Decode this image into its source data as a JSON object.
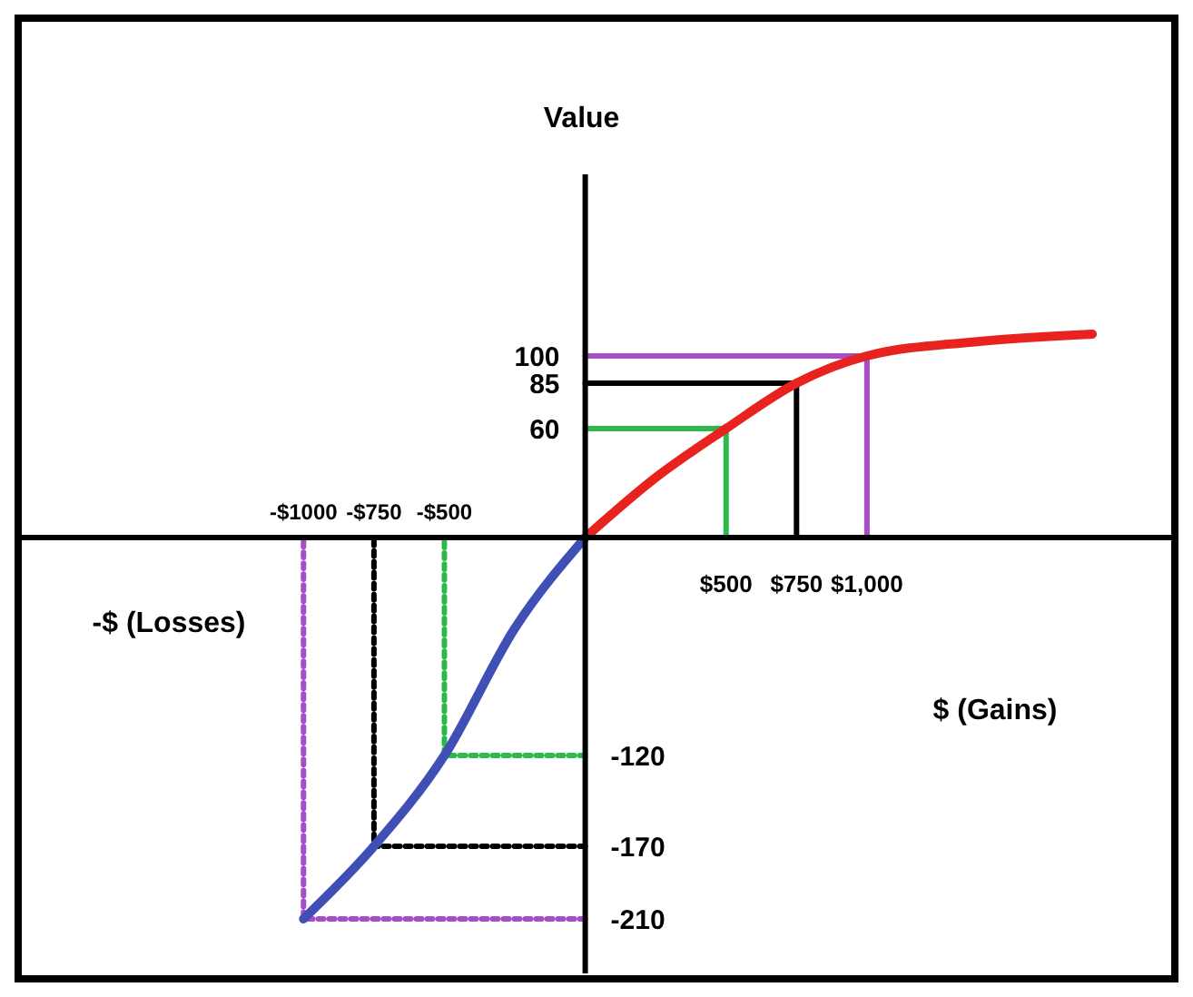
{
  "chart_data": {
    "type": "line",
    "xlabel": "$ (Gains)",
    "ylabel": "Value",
    "annotations": [
      "-$ (Losses)"
    ],
    "xlim": [
      -2000,
      2080
    ],
    "ylim": [
      -240,
      200
    ],
    "xticks": [
      {
        "value": 500,
        "label": "$500"
      },
      {
        "value": 750,
        "label": "$750"
      },
      {
        "value": 1000,
        "label": "$1,000"
      }
    ],
    "x2lim": [
      -2000,
      2080
    ],
    "x2ticks": [
      {
        "value": -1000,
        "label": "-$1000"
      },
      {
        "value": -750,
        "label": "-$750"
      },
      {
        "value": -500,
        "label": "-$500"
      }
    ],
    "yticks": [
      100,
      85,
      60
    ],
    "y2lim": [
      -240,
      200
    ],
    "y2ticks": [
      -120,
      -170,
      -210
    ],
    "series": [
      {
        "color": "#2db84a",
        "line_style": "solid",
        "x": [
          0,
          500,
          500
        ],
        "values": [
          60,
          60,
          0
        ]
      },
      {
        "color": "#000000",
        "line_style": "solid",
        "x": [
          0,
          750,
          750
        ],
        "values": [
          85,
          85,
          0
        ]
      },
      {
        "color": "#a64dc9",
        "line_style": "solid",
        "x": [
          0,
          1000,
          1000
        ],
        "values": [
          100,
          100,
          0
        ]
      },
      {
        "color": "#2db84a",
        "line_style": "dotted",
        "x": [
          0,
          -500,
          -500
        ],
        "values": [
          -120,
          -120,
          0
        ]
      },
      {
        "color": "#000000",
        "line_style": "dotted",
        "x": [
          0,
          -750,
          -750
        ],
        "values": [
          -170,
          -170,
          0
        ]
      },
      {
        "color": "#a64dc9",
        "line_style": "dotted",
        "x": [
          0,
          -1000,
          -1000
        ],
        "values": [
          -210,
          -210,
          0
        ]
      },
      {
        "color": "#e8231f",
        "line_style": "solid",
        "x": [
          0,
          250,
          500,
          750,
          1000,
          1400,
          1800
        ],
        "values": [
          0,
          33,
          60,
          85,
          100,
          108,
          112
        ]
      },
      {
        "color": "#3f4fb5",
        "line_style": "solid",
        "x": [
          0,
          -250,
          -500,
          -750,
          -1000
        ],
        "values": [
          0,
          -50,
          -120,
          -170,
          -210
        ]
      }
    ]
  }
}
